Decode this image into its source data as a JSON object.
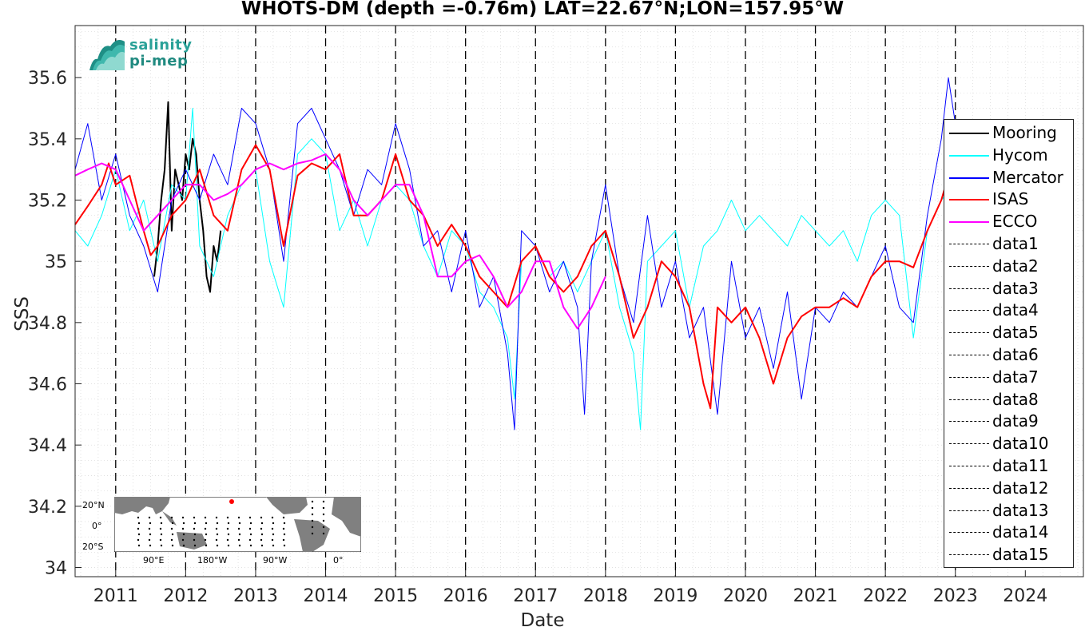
{
  "chart_data": {
    "type": "line",
    "title": "WHOTS-DM (depth =-0.76m) LAT=22.67°N;LON=157.95°W",
    "xlabel": "Date",
    "ylabel": "SSS",
    "xlim": [
      2010.42,
      2024.83
    ],
    "ylim": [
      33.97,
      35.77
    ],
    "yticks": [
      "34",
      "34.2",
      "34.4",
      "34.6",
      "34.8",
      "35",
      "35.2",
      "35.4",
      "35.6"
    ],
    "xticks": [
      "2011",
      "2012",
      "2013",
      "2014",
      "2015",
      "2016",
      "2017",
      "2018",
      "2019",
      "2020",
      "2021",
      "2022",
      "2023",
      "2024"
    ],
    "grid": true,
    "legend_position": "right",
    "vertical_lines": [
      2011.0,
      2012.0,
      2013.0,
      2014.0,
      2015.0,
      2016.0,
      2017.0,
      2018.0,
      2019.0,
      2020.0,
      2021.0,
      2022.0,
      2023.0
    ],
    "series": [
      {
        "name": "Mooring",
        "color": "#000000",
        "x": [
          2011.55,
          2011.6,
          2011.65,
          2011.7,
          2011.75,
          2011.8,
          2011.85,
          2011.9,
          2011.95,
          2012.0,
          2012.05,
          2012.1,
          2012.15,
          2012.2,
          2012.25,
          2012.3,
          2012.35,
          2012.4,
          2012.45,
          2012.5
        ],
        "y": [
          34.95,
          35.05,
          35.2,
          35.3,
          35.52,
          35.1,
          35.3,
          35.25,
          35.2,
          35.35,
          35.3,
          35.4,
          35.35,
          35.2,
          35.1,
          34.95,
          34.9,
          35.05,
          35.0,
          35.1
        ]
      },
      {
        "name": "Hycom",
        "color": "#00ffff",
        "x": [
          2010.42,
          2010.6,
          2010.8,
          2011.0,
          2011.2,
          2011.4,
          2011.6,
          2011.8,
          2012.0,
          2012.1,
          2012.2,
          2012.4,
          2012.6,
          2012.8,
          2013.0,
          2013.2,
          2013.4,
          2013.6,
          2013.8,
          2014.0,
          2014.2,
          2014.4,
          2014.6,
          2014.8,
          2015.0,
          2015.2,
          2015.4,
          2015.6,
          2015.8,
          2016.0,
          2016.2,
          2016.4,
          2016.6,
          2016.7,
          2016.8,
          2017.0,
          2017.2,
          2017.4,
          2017.6,
          2017.8,
          2018.0,
          2018.2,
          2018.4,
          2018.5,
          2018.6,
          2018.8,
          2019.0,
          2019.2,
          2019.4,
          2019.6,
          2019.8,
          2020.0,
          2020.2,
          2020.4,
          2020.6,
          2020.8,
          2021.0,
          2021.2,
          2021.4,
          2021.6,
          2021.8,
          2022.0,
          2022.2,
          2022.4,
          2022.6,
          2022.8,
          2023.0
        ],
        "y": [
          35.1,
          35.05,
          35.15,
          35.3,
          35.1,
          35.2,
          35.0,
          35.25,
          35.2,
          35.5,
          35.05,
          34.95,
          35.15,
          35.25,
          35.3,
          35.0,
          34.85,
          35.35,
          35.4,
          35.35,
          35.1,
          35.2,
          35.05,
          35.2,
          35.25,
          35.2,
          35.05,
          34.95,
          35.1,
          35.05,
          34.9,
          34.85,
          34.75,
          34.55,
          35.0,
          35.05,
          34.95,
          35.0,
          34.9,
          35.0,
          35.1,
          34.85,
          34.7,
          34.45,
          35.0,
          35.05,
          35.1,
          34.85,
          35.05,
          35.1,
          35.2,
          35.1,
          35.15,
          35.1,
          35.05,
          35.15,
          35.1,
          35.05,
          35.1,
          35.0,
          35.15,
          35.2,
          35.15,
          34.75,
          35.1,
          35.2,
          35.25
        ]
      },
      {
        "name": "Mercator",
        "color": "#0000ff",
        "x": [
          2010.42,
          2010.6,
          2010.8,
          2011.0,
          2011.2,
          2011.4,
          2011.6,
          2011.8,
          2012.0,
          2012.2,
          2012.4,
          2012.6,
          2012.8,
          2013.0,
          2013.2,
          2013.4,
          2013.6,
          2013.8,
          2014.0,
          2014.2,
          2014.4,
          2014.6,
          2014.8,
          2015.0,
          2015.2,
          2015.4,
          2015.6,
          2015.8,
          2016.0,
          2016.2,
          2016.4,
          2016.6,
          2016.7,
          2016.8,
          2017.0,
          2017.2,
          2017.4,
          2017.6,
          2017.7,
          2017.8,
          2018.0,
          2018.2,
          2018.4,
          2018.6,
          2018.8,
          2019.0,
          2019.2,
          2019.4,
          2019.6,
          2019.8,
          2020.0,
          2020.2,
          2020.4,
          2020.6,
          2020.8,
          2021.0,
          2021.2,
          2021.4,
          2021.6,
          2021.8,
          2022.0,
          2022.2,
          2022.4,
          2022.6,
          2022.8,
          2022.9,
          2023.0
        ],
        "y": [
          35.3,
          35.45,
          35.2,
          35.35,
          35.15,
          35.05,
          34.9,
          35.2,
          35.3,
          35.2,
          35.35,
          35.25,
          35.5,
          35.45,
          35.3,
          35.0,
          35.45,
          35.5,
          35.4,
          35.3,
          35.15,
          35.3,
          35.25,
          35.45,
          35.3,
          35.05,
          35.1,
          34.9,
          35.1,
          34.85,
          34.95,
          34.7,
          34.45,
          35.1,
          35.05,
          34.9,
          35.0,
          34.85,
          34.5,
          35.0,
          35.25,
          34.95,
          34.8,
          35.15,
          34.85,
          35.0,
          34.75,
          34.85,
          34.5,
          35.0,
          34.75,
          34.85,
          34.65,
          34.9,
          34.55,
          34.85,
          34.8,
          34.9,
          34.85,
          34.95,
          35.05,
          34.85,
          34.8,
          35.15,
          35.4,
          35.6,
          35.45
        ]
      },
      {
        "name": "ISAS",
        "color": "#ff0000",
        "x": [
          2010.42,
          2010.6,
          2010.8,
          2010.9,
          2011.0,
          2011.2,
          2011.4,
          2011.5,
          2011.6,
          2011.8,
          2012.0,
          2012.2,
          2012.4,
          2012.6,
          2012.8,
          2013.0,
          2013.2,
          2013.4,
          2013.6,
          2013.8,
          2014.0,
          2014.2,
          2014.4,
          2014.6,
          2014.8,
          2015.0,
          2015.2,
          2015.4,
          2015.6,
          2015.8,
          2016.0,
          2016.2,
          2016.4,
          2016.6,
          2016.8,
          2017.0,
          2017.2,
          2017.4,
          2017.6,
          2017.8,
          2018.0,
          2018.2,
          2018.4,
          2018.6,
          2018.8,
          2019.0,
          2019.2,
          2019.4,
          2019.5,
          2019.6,
          2019.8,
          2020.0,
          2020.2,
          2020.4,
          2020.6,
          2020.8,
          2021.0,
          2021.2,
          2021.4,
          2021.6,
          2021.8,
          2022.0,
          2022.2,
          2022.4,
          2022.6,
          2022.8,
          2022.9
        ],
        "y": [
          35.12,
          35.18,
          35.25,
          35.32,
          35.25,
          35.28,
          35.1,
          35.02,
          35.05,
          35.15,
          35.2,
          35.3,
          35.15,
          35.1,
          35.3,
          35.38,
          35.3,
          35.05,
          35.28,
          35.32,
          35.3,
          35.35,
          35.15,
          35.15,
          35.2,
          35.35,
          35.2,
          35.15,
          35.05,
          35.12,
          35.05,
          34.95,
          34.9,
          34.85,
          35.0,
          35.05,
          34.95,
          34.9,
          34.95,
          35.05,
          35.1,
          34.95,
          34.75,
          34.85,
          35.0,
          34.95,
          34.85,
          34.6,
          34.52,
          34.85,
          34.8,
          34.85,
          34.75,
          34.6,
          34.75,
          34.82,
          34.85,
          34.85,
          34.88,
          34.85,
          34.95,
          35.0,
          35.0,
          34.98,
          35.1,
          35.2,
          35.28
        ]
      },
      {
        "name": "ECCO",
        "color": "#ff00ff",
        "x": [
          2010.42,
          2010.6,
          2010.8,
          2011.0,
          2011.2,
          2011.4,
          2011.6,
          2011.8,
          2012.0,
          2012.2,
          2012.4,
          2012.6,
          2012.8,
          2013.0,
          2013.2,
          2013.4,
          2013.6,
          2013.8,
          2014.0,
          2014.2,
          2014.4,
          2014.6,
          2014.8,
          2015.0,
          2015.2,
          2015.4,
          2015.6,
          2015.8,
          2016.0,
          2016.2,
          2016.4,
          2016.6,
          2016.8,
          2017.0,
          2017.2,
          2017.4,
          2017.6,
          2017.8,
          2018.0
        ],
        "y": [
          35.28,
          35.3,
          35.32,
          35.3,
          35.2,
          35.1,
          35.15,
          35.2,
          35.25,
          35.25,
          35.2,
          35.22,
          35.25,
          35.3,
          35.32,
          35.3,
          35.32,
          35.33,
          35.35,
          35.3,
          35.2,
          35.15,
          35.2,
          35.25,
          35.25,
          35.15,
          34.95,
          34.95,
          35.0,
          35.02,
          34.95,
          34.85,
          34.9,
          35.0,
          35.0,
          34.85,
          34.78,
          34.85,
          34.95
        ]
      }
    ],
    "dashed_series": [
      "data1",
      "data2",
      "data3",
      "data4",
      "data5",
      "data6",
      "data7",
      "data8",
      "data9",
      "data10",
      "data11",
      "data12",
      "data13",
      "data14",
      "data15"
    ]
  },
  "logo": {
    "line1": "salinity",
    "line2": "pi-mep"
  },
  "inset": {
    "lat_labels": [
      "20°N",
      "0°",
      "20°S"
    ],
    "lon_labels": [
      "90°E",
      "180°W",
      "90°W",
      "0°"
    ],
    "land_color": "#808080",
    "marker_color": "#ff0000"
  }
}
